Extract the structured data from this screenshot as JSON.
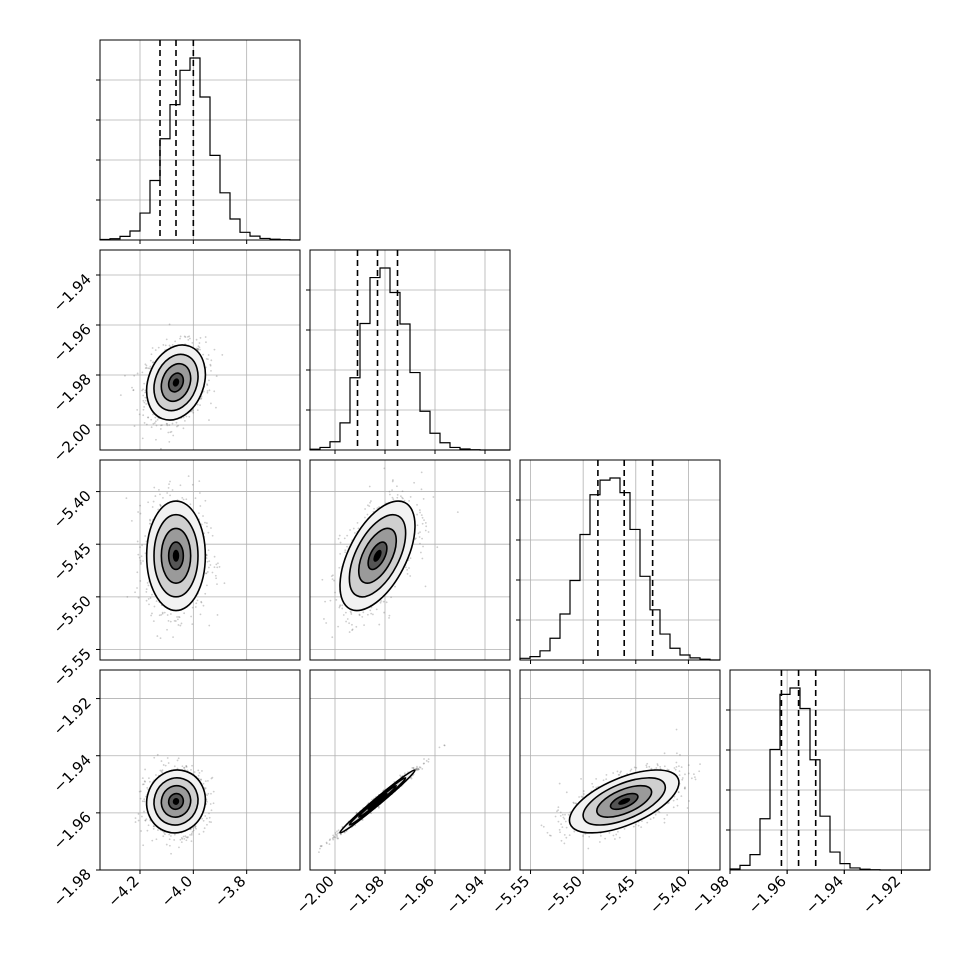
{
  "chart_data": {
    "type": "corner",
    "grid": true,
    "parameters": [
      {
        "index": 0,
        "range": [
          -4.35,
          -3.6
        ],
        "ticks": [
          -4.2,
          -4.0,
          -3.8
        ],
        "tick_labels": [
          "−4.2",
          "−4.0",
          "−3.8"
        ],
        "median": -4.065,
        "q16": -4.125,
        "q84": -4.0,
        "sigma": 0.055
      },
      {
        "index": 1,
        "range": [
          -2.01,
          -1.93
        ],
        "ticks": [
          -2.0,
          -1.98,
          -1.96,
          -1.94
        ],
        "tick_labels": [
          "−2.00",
          "−1.98",
          "−1.96",
          "−1.94"
        ],
        "median": -1.983,
        "q16": -1.991,
        "q84": -1.975,
        "sigma": 0.0075
      },
      {
        "index": 2,
        "range": [
          -5.56,
          -5.37
        ],
        "ticks": [
          -5.55,
          -5.5,
          -5.45,
          -5.4
        ],
        "tick_labels": [
          "−5.55",
          "−5.50",
          "−5.45",
          "−5.40"
        ],
        "median": -5.461,
        "q16": -5.486,
        "q84": -5.434,
        "sigma": 0.026
      },
      {
        "index": 3,
        "range": [
          -1.98,
          -1.91
        ],
        "ticks": [
          -1.98,
          -1.96,
          -1.94,
          -1.92
        ],
        "tick_labels": [
          "−1.98",
          "−1.96",
          "−1.94",
          "−1.92"
        ],
        "y_ticks": [
          -1.98,
          -1.96,
          -1.94,
          -1.92
        ],
        "median": -1.956,
        "q16": -1.962,
        "q84": -1.95,
        "sigma": 0.0055
      }
    ],
    "y_tick_sets": {
      "row1": {
        "ticks": [
          -2.0,
          -1.98,
          -1.96,
          -1.94
        ],
        "labels": [
          "−2.00",
          "−1.98",
          "−1.96",
          "−1.94"
        ]
      },
      "row2": {
        "ticks": [
          -5.55,
          -5.5,
          -5.45,
          -5.4
        ],
        "labels": [
          "−5.55",
          "−5.50",
          "−5.45",
          "−5.40"
        ]
      },
      "row3": {
        "ticks": [
          -1.98,
          -1.96,
          -1.94,
          -1.92
        ],
        "labels": [
          "−1.98",
          "−1.96",
          "−1.94",
          "−1.92"
        ]
      }
    },
    "histograms": [
      {
        "param": 0,
        "bin_edges_from": -4.35,
        "bin_width": 0.0375,
        "counts": [
          2,
          5,
          14,
          35,
          105,
          232,
          395,
          528,
          662,
          710,
          558,
          330,
          184,
          82,
          30,
          15,
          6,
          3,
          1,
          0
        ]
      },
      {
        "param": 1,
        "bin_edges_from": -2.01,
        "bin_width": 0.004,
        "counts": [
          3,
          10,
          32,
          105,
          280,
          490,
          668,
          705,
          610,
          488,
          300,
          150,
          65,
          28,
          10,
          4,
          1,
          0,
          0,
          0
        ]
      },
      {
        "param": 2,
        "bin_edges_from": -5.56,
        "bin_width": 0.0095,
        "counts": [
          4,
          8,
          22,
          52,
          110,
          190,
          300,
          395,
          430,
          435,
          400,
          312,
          200,
          120,
          62,
          28,
          12,
          5,
          2,
          0
        ]
      },
      {
        "param": 3,
        "bin_edges_from": -1.98,
        "bin_width": 0.0035,
        "counts": [
          4,
          18,
          60,
          200,
          470,
          685,
          710,
          630,
          430,
          210,
          70,
          25,
          8,
          3,
          1,
          0,
          0,
          0,
          0,
          0
        ]
      }
    ],
    "pairs": [
      {
        "row": 1,
        "col": 0,
        "correlation": 0.22
      },
      {
        "row": 2,
        "col": 0,
        "correlation": 0.0
      },
      {
        "row": 2,
        "col": 1,
        "correlation": 0.55
      },
      {
        "row": 3,
        "col": 0,
        "correlation": 0.05
      },
      {
        "row": 3,
        "col": 1,
        "correlation": 0.99
      },
      {
        "row": 3,
        "col": 2,
        "correlation": 0.6
      }
    ],
    "contour_levels_sigma": [
      0.5,
      1.0,
      1.5,
      2.0
    ]
  }
}
